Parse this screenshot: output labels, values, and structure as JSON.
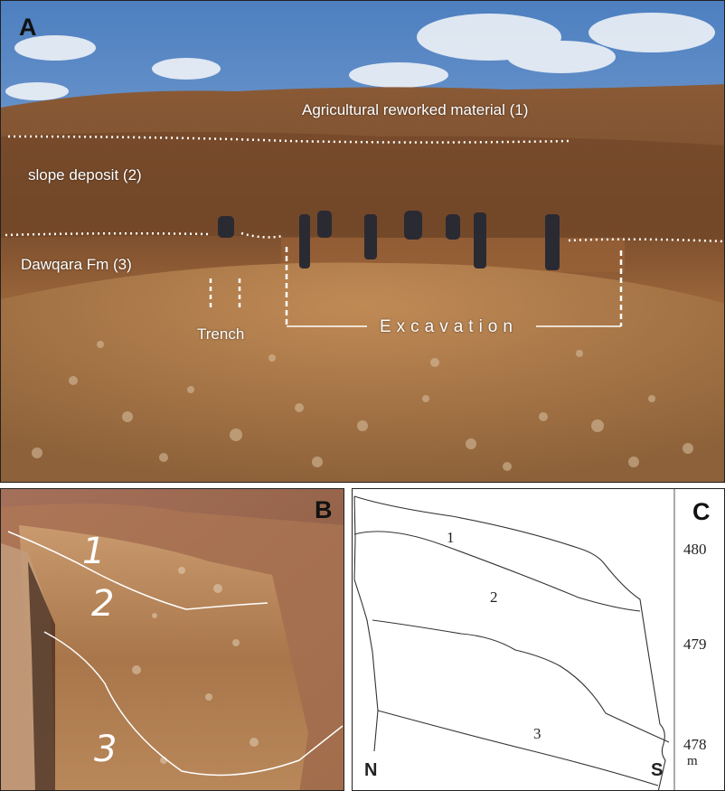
{
  "panel_a": {
    "letter": "A",
    "labels": {
      "agricultural": "Agricultural reworked material (1)",
      "slope": "slope deposit (2)",
      "dawqara": "Dawqara Fm (3)",
      "trench": "Trench",
      "excavation": "Excavation"
    }
  },
  "panel_b": {
    "letter": "B",
    "layers": [
      "1",
      "2",
      "3"
    ]
  },
  "panel_c": {
    "letter": "C",
    "layers": [
      "1",
      "2",
      "3"
    ],
    "elevation_ticks": [
      "480",
      "479",
      "478"
    ],
    "unit": "m",
    "north": "N",
    "south": "S"
  }
}
